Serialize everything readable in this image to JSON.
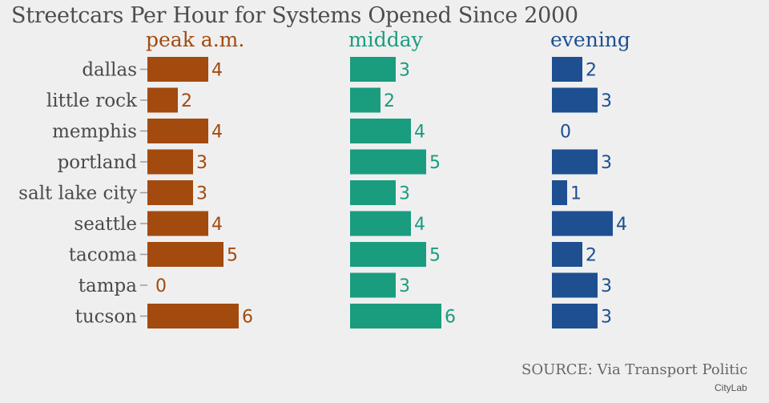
{
  "header": {
    "title": "Streetcars Per Hour for Systems Opened Since 2000"
  },
  "footer": {
    "source": "SOURCE: Via Transport Politic",
    "credit": "CityLab"
  },
  "chart_data": {
    "type": "bar",
    "title": "Streetcars Per Hour for Systems Opened Since 2000",
    "categories": [
      "dallas",
      "little rock",
      "memphis",
      "portland",
      "salt lake city",
      "seattle",
      "tacoma",
      "tampa",
      "tucson"
    ],
    "series": [
      {
        "name": "peak a.m.",
        "color": "#a34a0f",
        "values": [
          4,
          2,
          4,
          3,
          3,
          4,
          5,
          0,
          6
        ]
      },
      {
        "name": "midday",
        "color": "#1a9c7f",
        "values": [
          3,
          2,
          4,
          5,
          3,
          4,
          5,
          3,
          6
        ]
      },
      {
        "name": "evening",
        "color": "#1d4f91",
        "values": [
          2,
          3,
          0,
          3,
          1,
          4,
          2,
          3,
          3
        ]
      }
    ],
    "orientation": "horizontal",
    "grid": false,
    "legend": "panel titles above each bar group"
  }
}
